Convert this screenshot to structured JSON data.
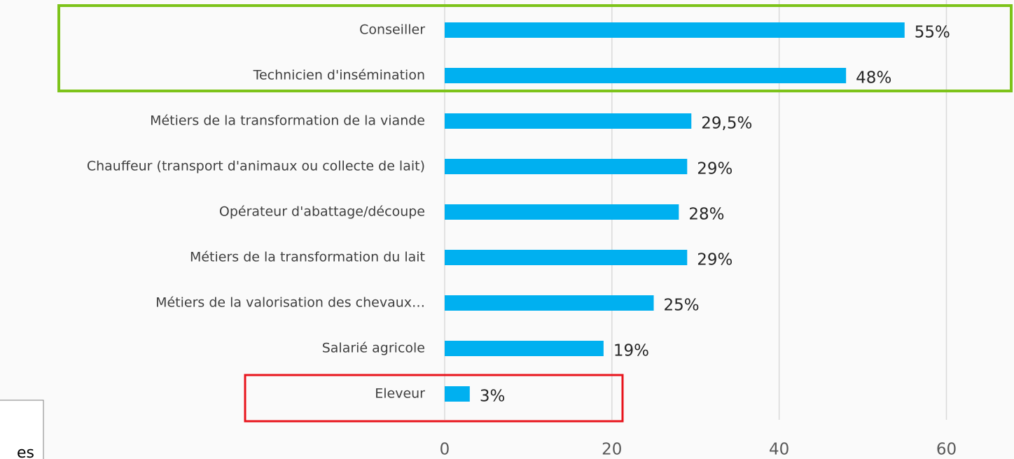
{
  "chart_data": {
    "type": "bar",
    "orientation": "horizontal",
    "categories": [
      "Conseiller",
      "Technicien d'insémination",
      "Métiers de la transformation de la viande",
      "Chauffeur (transport d'animaux ou collecte de lait)",
      "Opérateur d'abattage/découpe",
      "Métiers de la transformation du lait",
      "Métiers de la valorisation des chevaux…",
      "Salarié agricole",
      "Eleveur"
    ],
    "values": [
      55,
      48,
      29.5,
      29,
      28,
      29,
      25,
      19,
      3
    ],
    "value_labels": [
      "55%",
      "48%",
      "29,5%",
      "29%",
      "28%",
      "29%",
      "25%",
      "19%",
      "3%"
    ],
    "color": "#00b0f0",
    "xlim": [
      0,
      68
    ],
    "xticks": [
      0,
      20,
      40,
      60
    ],
    "grid": true,
    "annotation": "es"
  }
}
